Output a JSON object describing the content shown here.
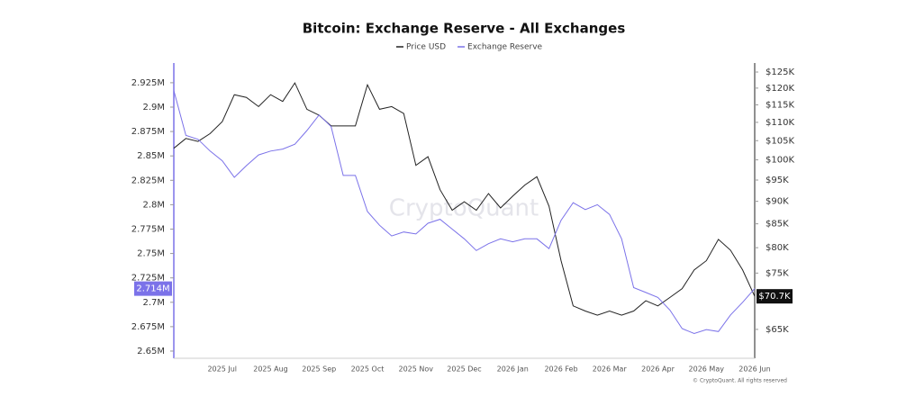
{
  "chart_data": {
    "type": "line",
    "title": "Bitcoin: Exchange Reserve - All Exchanges",
    "watermark": "CryptoQuant",
    "footnote": "© CryptoQuant. All rights reserved",
    "categories": [
      null,
      null,
      null,
      null,
      "2025 Jul",
      null,
      null,
      null,
      "2025 Aug",
      null,
      null,
      null,
      "2025 Sep",
      null,
      null,
      null,
      "2025 Oct",
      null,
      null,
      null,
      "2025 Nov",
      null,
      null,
      null,
      "2025 Dec",
      null,
      null,
      null,
      "2026 Jan",
      null,
      null,
      null,
      "2026 Feb",
      null,
      null,
      null,
      "2026 Mar",
      null,
      null,
      null,
      "2026 Apr",
      null,
      null,
      null,
      "2026 May",
      null,
      null,
      null,
      "2026 Jun"
    ],
    "series": [
      {
        "name": "Price USD",
        "color": "#222222",
        "axis": "y2",
        "values": [
          103,
          105.6,
          104.8,
          106.9,
          110.2,
          118,
          117.2,
          114.5,
          118,
          116,
          121.6,
          113.7,
          112,
          109,
          109,
          109,
          121,
          113.7,
          114.5,
          112.5,
          98.6,
          100.8,
          92.7,
          88,
          89.9,
          88,
          91.8,
          88.5,
          91.2,
          93.8,
          95.8,
          88.9,
          77.4,
          69,
          68.1,
          67.4,
          68.1,
          67.4,
          68.1,
          69.9,
          69,
          70.5,
          72.1,
          75.6,
          77.4,
          81.7,
          79.5,
          75.6,
          70.7
        ],
        "marker": {
          "value": 70.7,
          "label": "$70.7K"
        }
      },
      {
        "name": "Exchange Reserve",
        "color": "#7b72e9",
        "values": [
          2.917,
          2.871,
          2.867,
          2.855,
          2.845,
          2.828,
          2.84,
          2.851,
          2.855,
          2.857,
          2.862,
          2.876,
          2.892,
          2.88,
          2.83,
          2.83,
          2.793,
          2.779,
          2.768,
          2.772,
          2.77,
          2.781,
          2.785,
          2.775,
          2.765,
          2.753,
          2.76,
          2.765,
          2.762,
          2.765,
          2.765,
          2.755,
          2.784,
          2.802,
          2.795,
          2.8,
          2.79,
          2.765,
          2.715,
          2.71,
          2.705,
          2.692,
          2.673,
          2.668,
          2.672,
          2.67,
          2.687,
          2.7,
          2.714
        ],
        "marker": {
          "value": 2.714,
          "label": "2.714M"
        }
      }
    ],
    "ylim": [
      2.6426,
      2.9452
    ],
    "yticks": [
      {
        "value": 2.65,
        "label": "2.65M"
      },
      {
        "value": 2.675,
        "label": "2.675M"
      },
      {
        "value": 2.7,
        "label": "2.7M"
      },
      {
        "value": 2.725,
        "label": "2.725M"
      },
      {
        "value": 2.75,
        "label": "2.75M"
      },
      {
        "value": 2.775,
        "label": "2.775M"
      },
      {
        "value": 2.8,
        "label": "2.8M"
      },
      {
        "value": 2.825,
        "label": "2.825M"
      },
      {
        "value": 2.85,
        "label": "2.85M"
      },
      {
        "value": 2.875,
        "label": "2.875M"
      },
      {
        "value": 2.9,
        "label": "2.9M"
      },
      {
        "value": 2.925,
        "label": "2.925M"
      }
    ],
    "y2lim": [
      60.4,
      127.9
    ],
    "y2_log": true,
    "y2ticks": [
      {
        "value": 65,
        "label": "$65K"
      },
      {
        "value": 75,
        "label": "$75K"
      },
      {
        "value": 80,
        "label": "$80K"
      },
      {
        "value": 85,
        "label": "$85K"
      },
      {
        "value": 90,
        "label": "$90K"
      },
      {
        "value": 95,
        "label": "$95K"
      },
      {
        "value": 100,
        "label": "$100K"
      },
      {
        "value": 105,
        "label": "$105K"
      },
      {
        "value": 110,
        "label": "$110K"
      },
      {
        "value": 115,
        "label": "$115K"
      },
      {
        "value": 120,
        "label": "$120K"
      },
      {
        "value": 125,
        "label": "$125K"
      }
    ],
    "legend": "top"
  }
}
